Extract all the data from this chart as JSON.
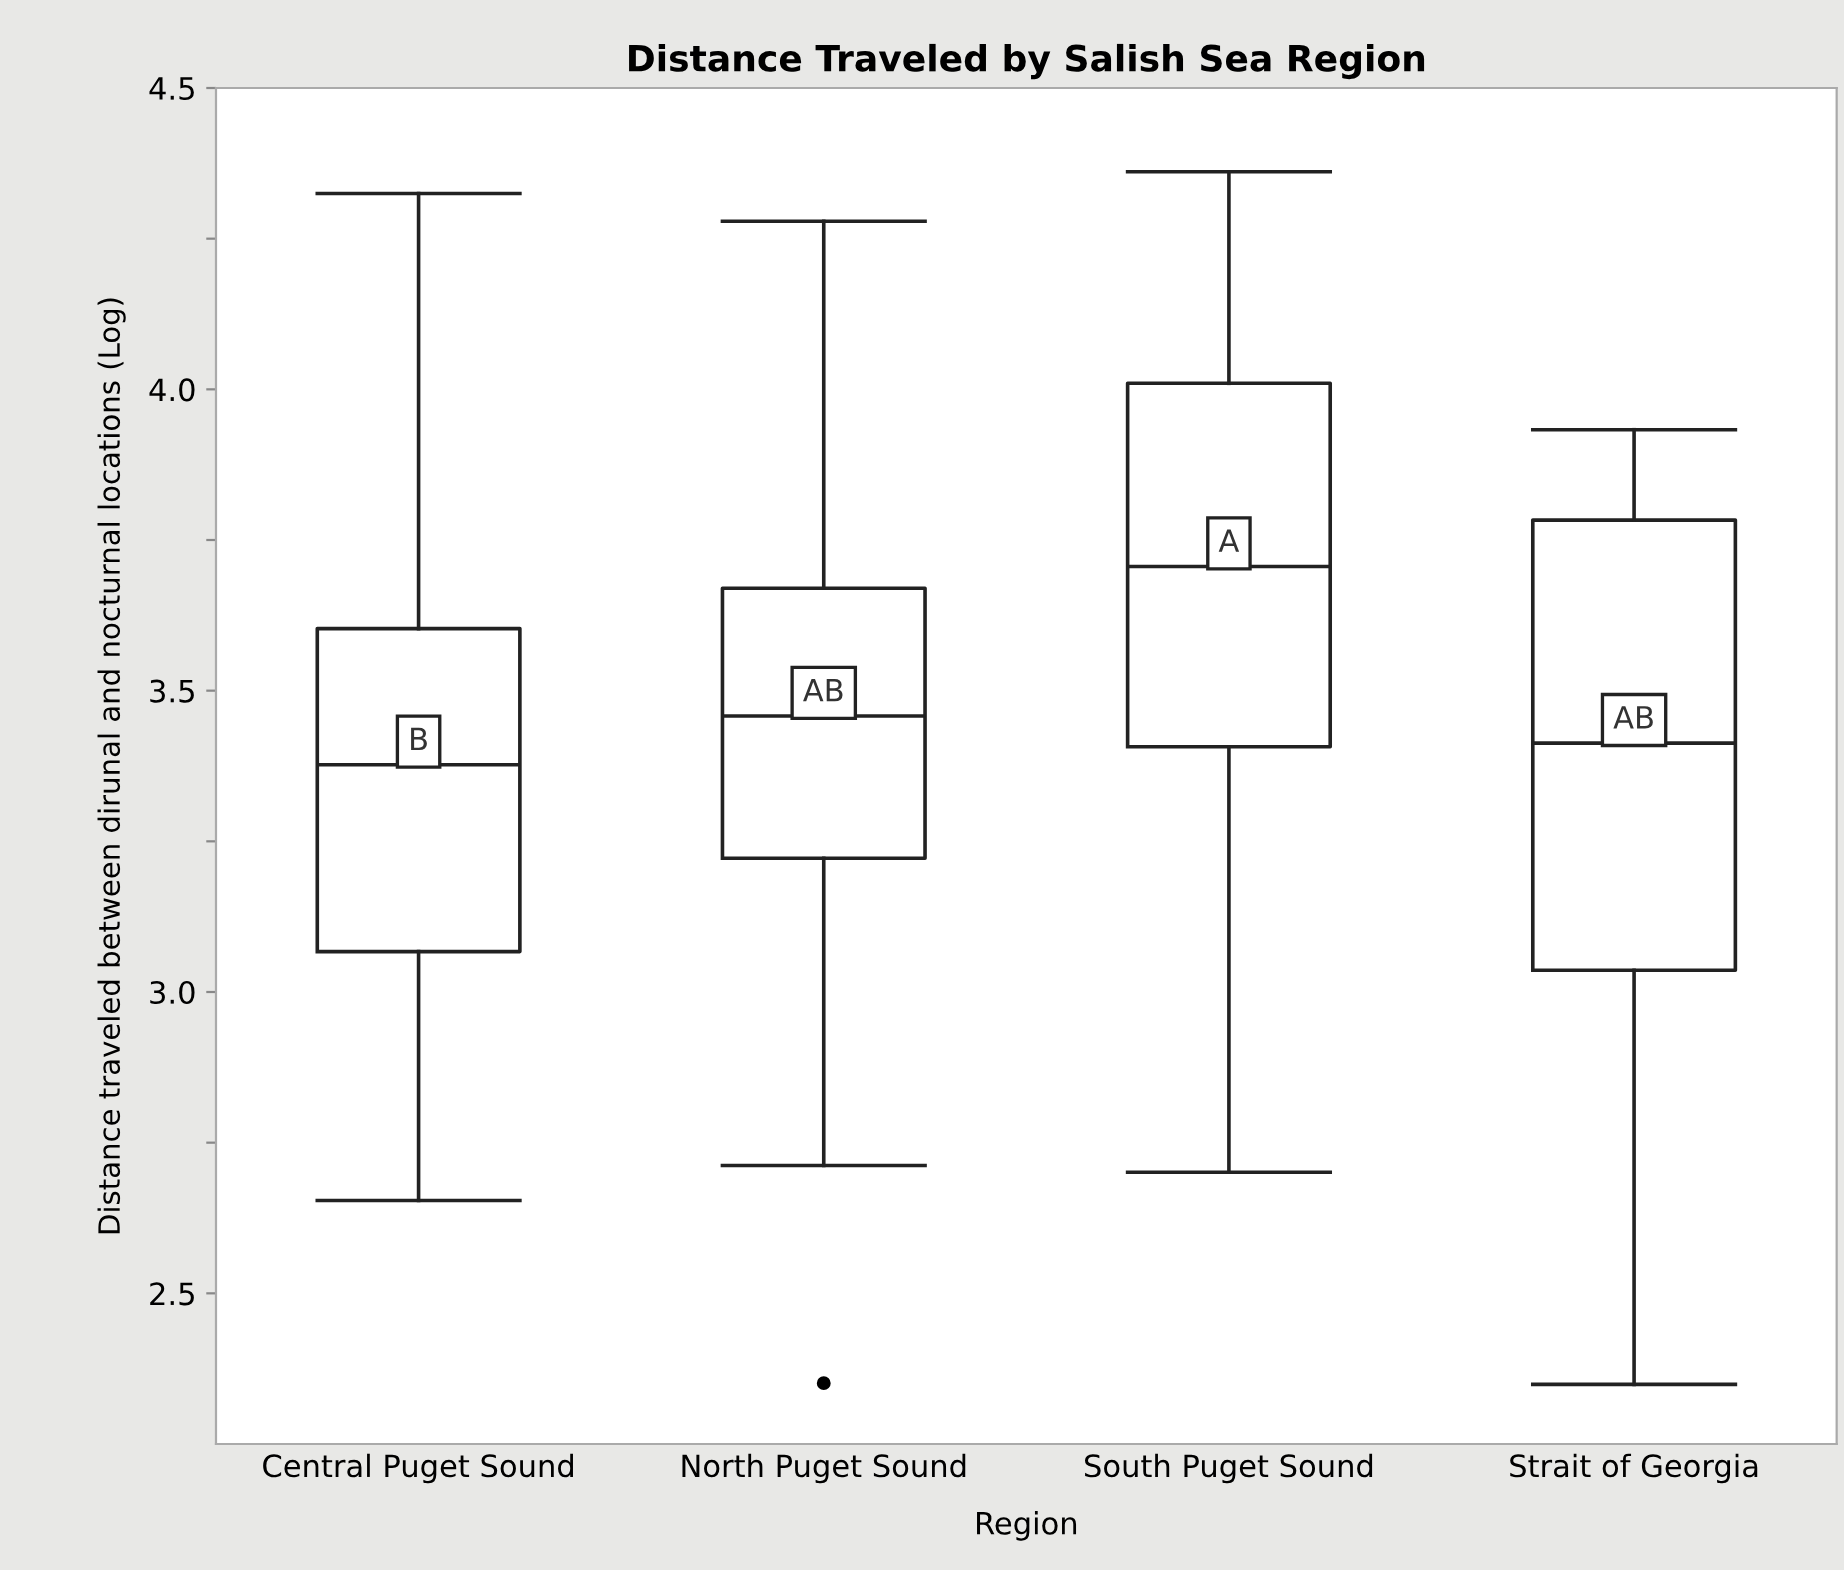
{
  "chart_data": {
    "type": "box",
    "title": "Distance Traveled by Salish Sea Region",
    "xlabel": "Region",
    "ylabel": "Distance traveled between dirunal and nocturnal locations (Log)",
    "categories": [
      "Central Puget Sound",
      "North Puget Sound",
      "South Puget Sound",
      "Strait of Georgia"
    ],
    "boxes": [
      {
        "low": 2.654,
        "q1": 3.067,
        "median": 3.377,
        "q3": 3.603,
        "high": 4.325
      },
      {
        "low": 2.712,
        "q1": 3.222,
        "median": 3.458,
        "q3": 3.67,
        "high": 4.279,
        "outliers": [
          2.351
        ]
      },
      {
        "low": 2.701,
        "q1": 3.407,
        "median": 3.706,
        "q3": 4.01,
        "high": 4.361
      },
      {
        "low": 2.349,
        "q1": 3.036,
        "median": 3.413,
        "q3": 3.783,
        "high": 3.933
      }
    ],
    "ylim": [
      2.25,
      4.5
    ],
    "yticks": [
      {
        "value": 2.5,
        "label": "2.5"
      },
      {
        "value": 2.75,
        "label": null
      },
      {
        "value": 3.0,
        "label": "3.0"
      },
      {
        "value": 3.25,
        "label": null
      },
      {
        "value": 3.5,
        "label": "3.5"
      },
      {
        "value": 3.75,
        "label": null
      },
      {
        "value": 4.0,
        "label": "4.0"
      },
      {
        "value": 4.25,
        "label": null
      },
      {
        "value": 4.5,
        "label": "4.5"
      }
    ],
    "annotations": [
      {
        "text": "B",
        "x": "Central Puget Sound",
        "y": 3.377
      },
      {
        "text": "AB",
        "x": "North Puget Sound",
        "y": 3.458
      },
      {
        "text": "A",
        "x": "South Puget Sound",
        "y": 3.706
      },
      {
        "text": "AB",
        "x": "Strait of Georgia",
        "y": 3.413
      }
    ],
    "grid": false
  }
}
